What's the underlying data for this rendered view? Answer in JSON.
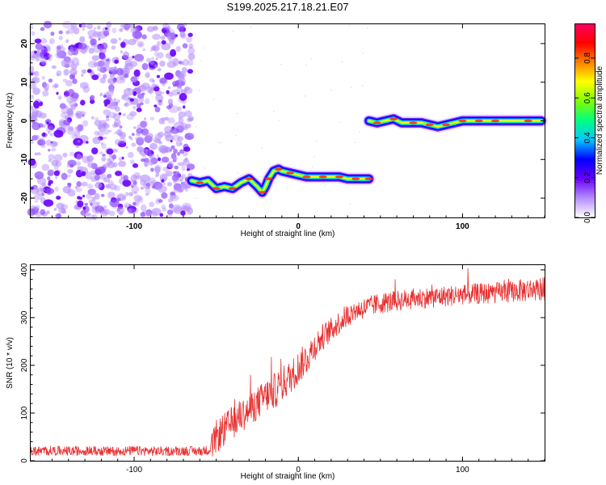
{
  "figure": {
    "title": "S199.2025.217.18.21.E07"
  },
  "chart_data": [
    {
      "type": "heatmap",
      "panel": "spectrogram",
      "xlabel": "Height of straight line (km)",
      "ylabel": "Frequency (Hz)",
      "xlim": [
        -163,
        150
      ],
      "ylim": [
        -25,
        25
      ],
      "xticks": [
        -100,
        0,
        100
      ],
      "yticks": [
        -20,
        -10,
        0,
        10,
        20
      ],
      "colorbar": {
        "label": "Normalized spectral amplitude",
        "range": [
          0,
          0.97
        ],
        "ticks": [
          0.0,
          0.2,
          0.4,
          0.6,
          0.8
        ],
        "tick_labels": [
          "0.0",
          "0.2",
          "0.4",
          "0.6",
          "0.8"
        ],
        "colors": [
          "#ffffff",
          "#b48cff",
          "#6a00ff",
          "#0000ff",
          "#00c8ff",
          "#00ff80",
          "#80ff00",
          "#ffff00",
          "#ff8000",
          "#ff0000",
          "#ff0066"
        ]
      },
      "noise_region": {
        "x": [
          -163,
          -65
        ],
        "y": [
          -25,
          25
        ],
        "level": 0.15
      },
      "ridges": [
        {
          "x": [
            -65,
            -60,
            -55,
            -50,
            -45,
            -40,
            -35,
            -30,
            -25,
            -22,
            -20,
            -18,
            -15,
            -12,
            -10,
            -5,
            0,
            5,
            10,
            15,
            20,
            25,
            30,
            35,
            40,
            43
          ],
          "y": [
            -15.5,
            -16,
            -15.5,
            -17.5,
            -17,
            -17.5,
            -16,
            -15,
            -17,
            -18.5,
            -17,
            -15,
            -13,
            -12.5,
            -13,
            -13.5,
            -14,
            -14.5,
            -14.5,
            -14.5,
            -14.5,
            -14.5,
            -15,
            -15,
            -15,
            -15
          ]
        },
        {
          "x": [
            43,
            48,
            53,
            58,
            63,
            70,
            75,
            80,
            85,
            90,
            95,
            100,
            105,
            110,
            115,
            120,
            130,
            140,
            148
          ],
          "y": [
            0,
            -0.5,
            0,
            0.5,
            -0.5,
            -0.5,
            -0.5,
            -1,
            -1.5,
            -1,
            -0.5,
            0,
            0,
            0,
            0,
            0,
            0,
            0,
            0
          ]
        }
      ]
    },
    {
      "type": "line",
      "panel": "snr",
      "xlabel": "Height of straight line (km)",
      "ylabel": "SNR (10 * v/v)",
      "xlim": [
        -163,
        150
      ],
      "ylim": [
        0,
        410
      ],
      "xticks": [
        -100,
        0,
        100
      ],
      "yticks": [
        0,
        100,
        200,
        300,
        400
      ],
      "series": [
        {
          "color": "#e83030",
          "x": [
            -163,
            -150,
            -140,
            -130,
            -120,
            -110,
            -100,
            -90,
            -80,
            -70,
            -60,
            -55,
            -52,
            -50,
            -45,
            -40,
            -35,
            -30,
            -25,
            -20,
            -15,
            -10,
            -5,
            0,
            5,
            10,
            15,
            20,
            25,
            30,
            35,
            40,
            45,
            50,
            60,
            70,
            80,
            90,
            100,
            110,
            120,
            130,
            140,
            150
          ],
          "values": [
            20,
            21,
            20,
            21,
            20,
            20,
            21,
            20,
            20,
            21,
            20,
            22,
            35,
            50,
            65,
            80,
            95,
            105,
            120,
            135,
            145,
            160,
            175,
            195,
            215,
            240,
            260,
            275,
            290,
            305,
            315,
            320,
            325,
            330,
            335,
            340,
            342,
            345,
            348,
            350,
            352,
            355,
            358,
            360
          ],
          "noise": [
            10,
            10,
            10,
            10,
            10,
            10,
            10,
            10,
            10,
            10,
            10,
            10,
            30,
            35,
            35,
            35,
            35,
            35,
            35,
            35,
            38,
            38,
            35,
            35,
            35,
            30,
            28,
            25,
            25,
            25,
            22,
            22,
            22,
            22,
            22,
            22,
            22,
            22,
            22,
            22,
            22,
            22,
            25,
            25
          ]
        }
      ]
    }
  ]
}
